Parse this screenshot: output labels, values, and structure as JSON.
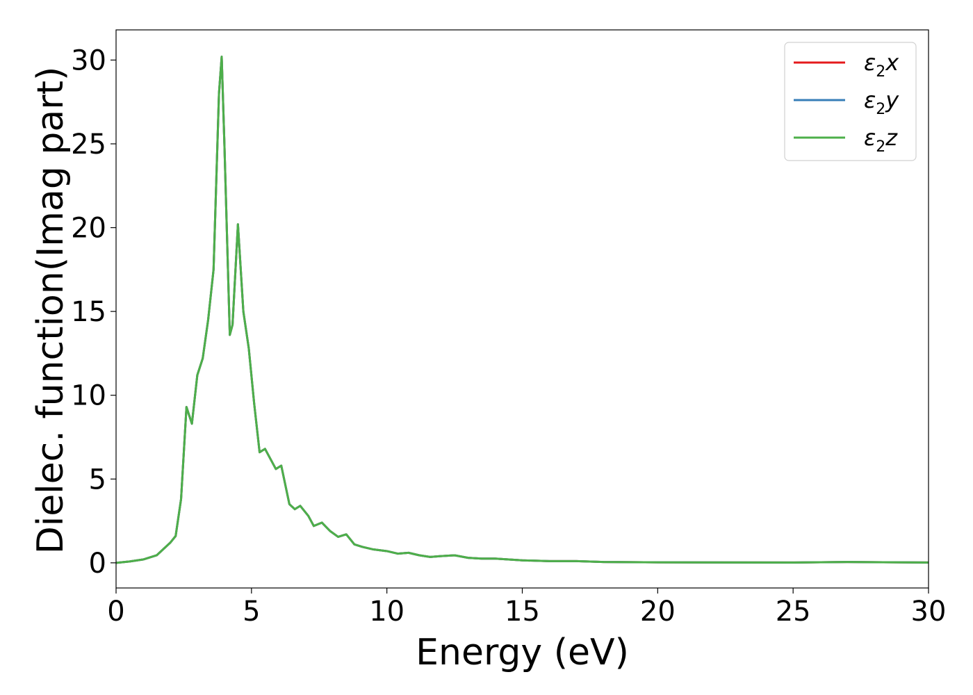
{
  "chart_data": {
    "type": "line",
    "title": "",
    "xlabel": "Energy (eV)",
    "ylabel": "Dielec. function(Imag part)",
    "xlim": [
      0,
      30
    ],
    "ylim": [
      -1.5,
      31.8
    ],
    "x_ticks": [
      "0",
      "5",
      "10",
      "15",
      "20",
      "25",
      "30"
    ],
    "y_ticks": [
      "0",
      "5",
      "10",
      "15",
      "20",
      "25",
      "30"
    ],
    "grid": false,
    "legend_position": "top-right",
    "series": [
      {
        "name": "ε₂x",
        "legend_base": "ε",
        "legend_sub": "2",
        "legend_var": "x",
        "color": "#e41a1c",
        "x": [
          0,
          0.5,
          1,
          1.5,
          1.8,
          2,
          2.2,
          2.4,
          2.6,
          2.8,
          3,
          3.2,
          3.4,
          3.6,
          3.8,
          3.9,
          4,
          4.2,
          4.3,
          4.5,
          4.7,
          4.9,
          5.1,
          5.3,
          5.5,
          5.7,
          5.9,
          6.1,
          6.4,
          6.6,
          6.8,
          7.1,
          7.3,
          7.6,
          7.9,
          8.2,
          8.5,
          8.8,
          9.1,
          9.5,
          10,
          10.4,
          10.8,
          11.2,
          11.6,
          12,
          12.5,
          13,
          13.5,
          14,
          15,
          16,
          17,
          18,
          20,
          25,
          27,
          30
        ],
        "y": [
          0,
          0.08,
          0.2,
          0.45,
          0.9,
          1.2,
          1.6,
          3.8,
          9.3,
          8.3,
          11.2,
          12.2,
          14.5,
          17.5,
          28,
          30.2,
          25,
          13.6,
          14.2,
          20.2,
          15,
          12.8,
          9.5,
          6.6,
          6.8,
          6.2,
          5.6,
          5.8,
          3.5,
          3.2,
          3.4,
          2.8,
          2.2,
          2.4,
          1.9,
          1.55,
          1.7,
          1.1,
          0.95,
          0.8,
          0.7,
          0.55,
          0.6,
          0.45,
          0.35,
          0.4,
          0.45,
          0.3,
          0.25,
          0.25,
          0.15,
          0.1,
          0.1,
          0.05,
          0.03,
          0.02,
          0.05,
          0.02
        ]
      },
      {
        "name": "ε₂y",
        "legend_base": "ε",
        "legend_sub": "2",
        "legend_var": "y",
        "color": "#377eb8",
        "x": [
          0,
          0.5,
          1,
          1.5,
          1.8,
          2,
          2.2,
          2.4,
          2.6,
          2.8,
          3,
          3.2,
          3.4,
          3.6,
          3.8,
          3.9,
          4,
          4.2,
          4.3,
          4.5,
          4.7,
          4.9,
          5.1,
          5.3,
          5.5,
          5.7,
          5.9,
          6.1,
          6.4,
          6.6,
          6.8,
          7.1,
          7.3,
          7.6,
          7.9,
          8.2,
          8.5,
          8.8,
          9.1,
          9.5,
          10,
          10.4,
          10.8,
          11.2,
          11.6,
          12,
          12.5,
          13,
          13.5,
          14,
          15,
          16,
          17,
          18,
          20,
          25,
          27,
          30
        ],
        "y": [
          0,
          0.08,
          0.2,
          0.45,
          0.9,
          1.2,
          1.6,
          3.8,
          9.3,
          8.3,
          11.2,
          12.2,
          14.5,
          17.5,
          28,
          30.2,
          25,
          13.6,
          14.2,
          20.2,
          15,
          12.8,
          9.5,
          6.6,
          6.8,
          6.2,
          5.6,
          5.8,
          3.5,
          3.2,
          3.4,
          2.8,
          2.2,
          2.4,
          1.9,
          1.55,
          1.7,
          1.1,
          0.95,
          0.8,
          0.7,
          0.55,
          0.6,
          0.45,
          0.35,
          0.4,
          0.45,
          0.3,
          0.25,
          0.25,
          0.15,
          0.1,
          0.1,
          0.05,
          0.03,
          0.02,
          0.05,
          0.02
        ]
      },
      {
        "name": "ε₂z",
        "legend_base": "ε",
        "legend_sub": "2",
        "legend_var": "z",
        "color": "#4daf4a",
        "x": [
          0,
          0.5,
          1,
          1.5,
          1.8,
          2,
          2.2,
          2.4,
          2.6,
          2.8,
          3,
          3.2,
          3.4,
          3.6,
          3.8,
          3.9,
          4,
          4.2,
          4.3,
          4.5,
          4.7,
          4.9,
          5.1,
          5.3,
          5.5,
          5.7,
          5.9,
          6.1,
          6.4,
          6.6,
          6.8,
          7.1,
          7.3,
          7.6,
          7.9,
          8.2,
          8.5,
          8.8,
          9.1,
          9.5,
          10,
          10.4,
          10.8,
          11.2,
          11.6,
          12,
          12.5,
          13,
          13.5,
          14,
          15,
          16,
          17,
          18,
          20,
          25,
          27,
          30
        ],
        "y": [
          0,
          0.08,
          0.2,
          0.45,
          0.9,
          1.2,
          1.6,
          3.8,
          9.3,
          8.3,
          11.2,
          12.2,
          14.5,
          17.5,
          28,
          30.2,
          25,
          13.6,
          14.2,
          20.2,
          15,
          12.8,
          9.5,
          6.6,
          6.8,
          6.2,
          5.6,
          5.8,
          3.5,
          3.2,
          3.4,
          2.8,
          2.2,
          2.4,
          1.9,
          1.55,
          1.7,
          1.1,
          0.95,
          0.8,
          0.7,
          0.55,
          0.6,
          0.45,
          0.35,
          0.4,
          0.45,
          0.3,
          0.25,
          0.25,
          0.15,
          0.1,
          0.1,
          0.05,
          0.03,
          0.02,
          0.05,
          0.02
        ]
      }
    ]
  }
}
